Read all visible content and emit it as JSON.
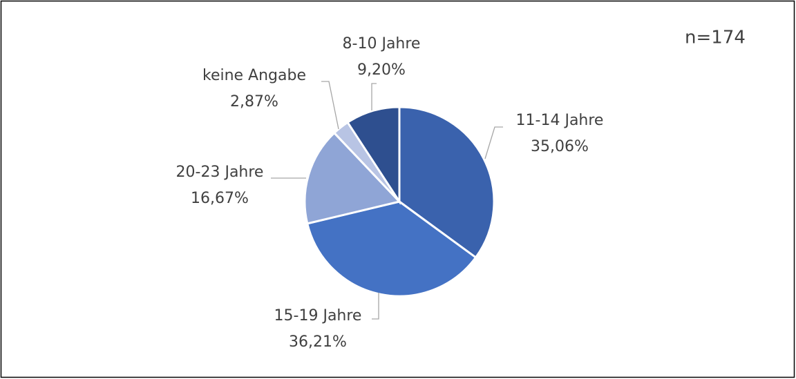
{
  "chart_data": {
    "type": "pie",
    "annotation": "n=174",
    "categories": [
      "11-14 Jahre",
      "15-19 Jahre",
      "20-23 Jahre",
      "keine Angabe",
      "8-10 Jahre"
    ],
    "values": [
      35.06,
      36.21,
      16.67,
      2.87,
      9.2
    ],
    "value_labels": [
      "35,06%",
      "36,21%",
      "16,67%",
      "2,87%",
      "9,20%"
    ],
    "colors": [
      "#3a62ad",
      "#4472c4",
      "#8fa5d6",
      "#b8c4e4",
      "#2e4f8f"
    ]
  }
}
